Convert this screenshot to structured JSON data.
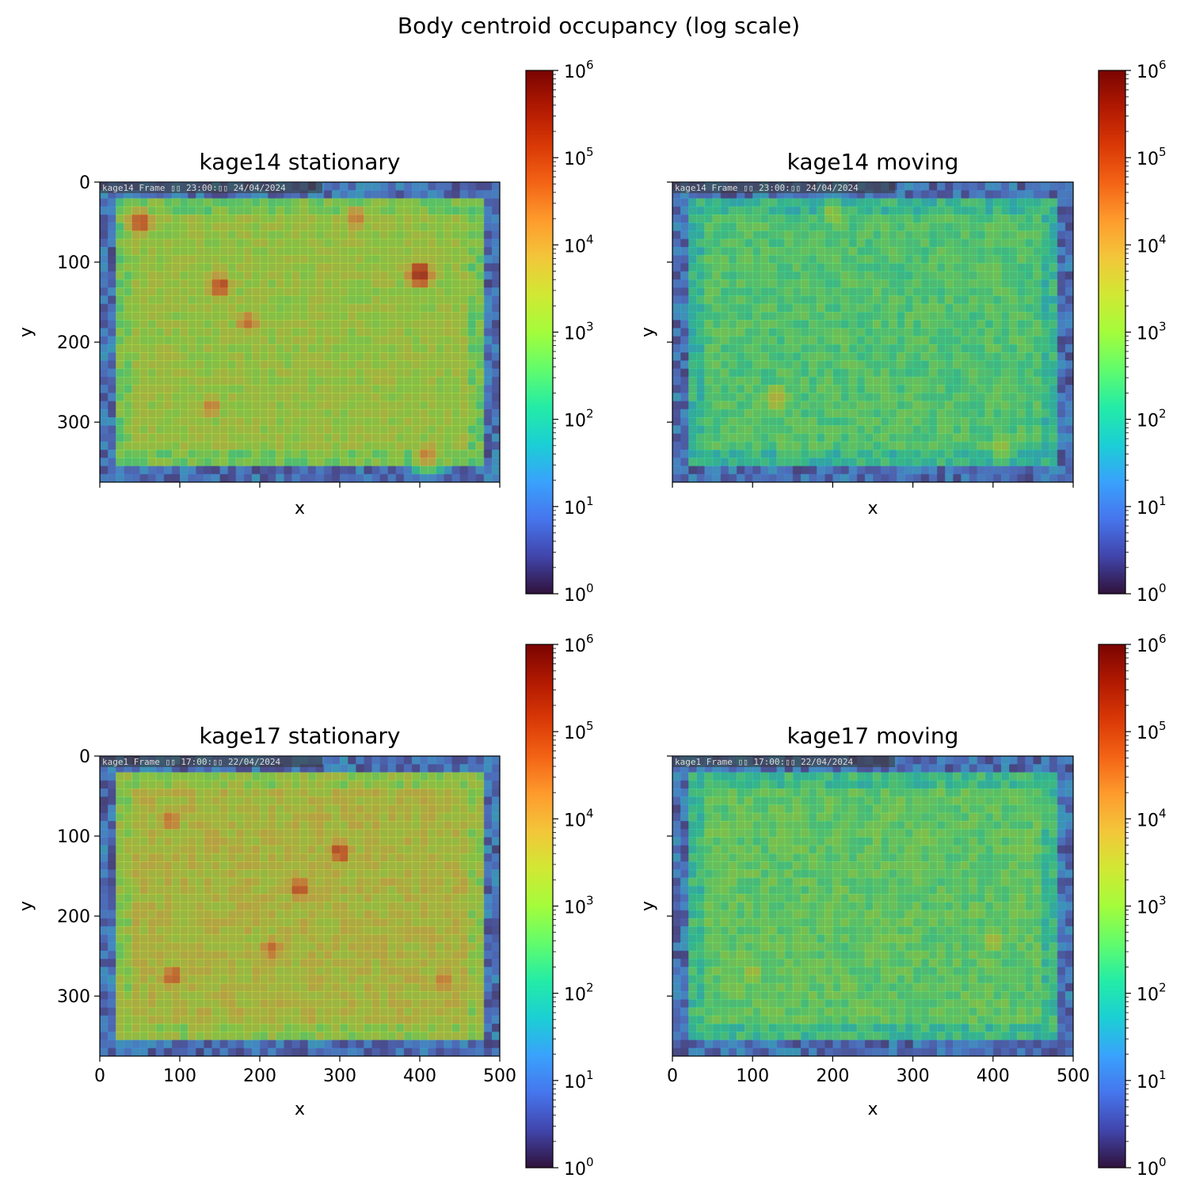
{
  "figure": {
    "suptitle": "Body centroid occupancy (log scale)"
  },
  "colors": {
    "colormap": [
      "#30123b",
      "#4145ab",
      "#4675ed",
      "#39a2fc",
      "#1bcfd4",
      "#24eca6",
      "#61fc6c",
      "#a4fc3b",
      "#d1e834",
      "#f3c63a",
      "#fe9b2d",
      "#f36315",
      "#d93806",
      "#b11901",
      "#7a0402"
    ],
    "background": "#ffffff"
  },
  "chart_data": [
    {
      "type": "heatmap",
      "title": "kage14 stationary",
      "xlabel": "x",
      "ylabel": "y",
      "xlim": [
        0,
        500
      ],
      "ylim": [
        375,
        0
      ],
      "xticks": [
        0,
        100,
        200,
        300,
        400,
        500
      ],
      "yticks": [
        0,
        100,
        200,
        300
      ],
      "xtick_labels_shown": false,
      "ytick_labels_shown": true,
      "overlay_caption": "kage14 Frame ▯▯ 23:00:▯▯ 24/04/2024",
      "colorbar": {
        "scale": "log",
        "range": [
          1,
          1000000
        ],
        "ticks": [
          "10^0",
          "10^1",
          "10^2",
          "10^3",
          "10^4",
          "10^5",
          "10^6"
        ]
      },
      "grid": false,
      "hotspots": [
        {
          "x": 50,
          "y": 50,
          "count": 100000
        },
        {
          "x": 150,
          "y": 130,
          "count": 100000
        },
        {
          "x": 185,
          "y": 175,
          "count": 30000
        },
        {
          "x": 400,
          "y": 115,
          "count": 300000
        },
        {
          "x": 320,
          "y": 45,
          "count": 30000
        },
        {
          "x": 140,
          "y": 280,
          "count": 20000
        },
        {
          "x": 410,
          "y": 340,
          "count": 20000
        }
      ],
      "baseline_count": 1500
    },
    {
      "type": "heatmap",
      "title": "kage14 moving",
      "xlabel": "x",
      "ylabel": "y",
      "xlim": [
        0,
        500
      ],
      "ylim": [
        375,
        0
      ],
      "xticks": [
        0,
        100,
        200,
        300,
        400,
        500
      ],
      "yticks": [
        0,
        100,
        200,
        300
      ],
      "xtick_labels_shown": false,
      "ytick_labels_shown": false,
      "overlay_caption": "kage14 Frame ▯▯ 23:00:▯▯ 24/04/2024",
      "colorbar": {
        "scale": "log",
        "range": [
          1,
          1000000
        ],
        "ticks": [
          "10^0",
          "10^1",
          "10^2",
          "10^3",
          "10^4",
          "10^5",
          "10^6"
        ]
      },
      "grid": false,
      "hotspots": [
        {
          "x": 130,
          "y": 270,
          "count": 5000
        },
        {
          "x": 410,
          "y": 330,
          "count": 1500
        },
        {
          "x": 200,
          "y": 40,
          "count": 1500
        }
      ],
      "baseline_count": 300
    },
    {
      "type": "heatmap",
      "title": "kage17 stationary",
      "xlabel": "x",
      "ylabel": "y",
      "xlim": [
        0,
        500
      ],
      "ylim": [
        375,
        0
      ],
      "xticks": [
        0,
        100,
        200,
        300,
        400,
        500
      ],
      "yticks": [
        0,
        100,
        200,
        300
      ],
      "xtick_labels_shown": true,
      "ytick_labels_shown": true,
      "overlay_caption": "kage1 Frame ▯▯ 17:00:▯▯ 22/04/2024",
      "colorbar": {
        "scale": "log",
        "range": [
          1,
          1000000
        ],
        "ticks": [
          "10^0",
          "10^1",
          "10^2",
          "10^3",
          "10^4",
          "10^5",
          "10^6"
        ]
      },
      "grid": false,
      "hotspots": [
        {
          "x": 90,
          "y": 275,
          "count": 60000
        },
        {
          "x": 250,
          "y": 165,
          "count": 100000
        },
        {
          "x": 300,
          "y": 120,
          "count": 100000
        },
        {
          "x": 215,
          "y": 240,
          "count": 50000
        },
        {
          "x": 90,
          "y": 80,
          "count": 30000
        },
        {
          "x": 430,
          "y": 280,
          "count": 30000
        }
      ],
      "baseline_count": 3000
    },
    {
      "type": "heatmap",
      "title": "kage17 moving",
      "xlabel": "x",
      "ylabel": "y",
      "xlim": [
        0,
        500
      ],
      "ylim": [
        375,
        0
      ],
      "xticks": [
        0,
        100,
        200,
        300,
        400,
        500
      ],
      "yticks": [
        0,
        100,
        200,
        300
      ],
      "xtick_labels_shown": true,
      "ytick_labels_shown": false,
      "overlay_caption": "kage1 Frame ▯▯ 17:00:▯▯ 22/04/2024",
      "colorbar": {
        "scale": "log",
        "range": [
          1,
          1000000
        ],
        "ticks": [
          "10^0",
          "10^1",
          "10^2",
          "10^3",
          "10^4",
          "10^5",
          "10^6"
        ]
      },
      "grid": false,
      "hotspots": [
        {
          "x": 400,
          "y": 230,
          "count": 3000
        },
        {
          "x": 100,
          "y": 270,
          "count": 2000
        }
      ],
      "baseline_count": 400
    }
  ]
}
